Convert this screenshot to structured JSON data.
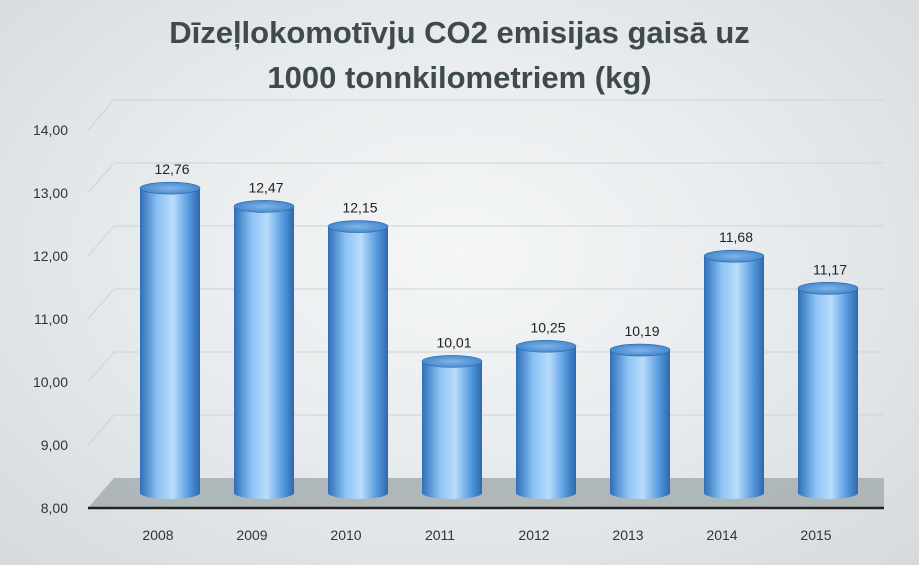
{
  "chart_data": {
    "type": "bar",
    "title_lines": [
      "Dīzeļlokomotīvju CO2 emisijas gaisā uz",
      "1000 tonnkilometriem (kg)"
    ],
    "categories": [
      "2008",
      "2009",
      "2010",
      "2011",
      "2012",
      "2013",
      "2014",
      "2015"
    ],
    "values": [
      12.76,
      12.47,
      12.15,
      10.01,
      10.25,
      10.19,
      11.68,
      11.17
    ],
    "value_labels": [
      "12,76",
      "12,47",
      "12,15",
      "10,01",
      "10,25",
      "10,19",
      "11,68",
      "11,17"
    ],
    "y_ticks": [
      "8,00",
      "9,00",
      "10,00",
      "11,00",
      "12,00",
      "13,00",
      "14,00"
    ],
    "ylim": [
      8,
      14
    ],
    "grid": true,
    "bar_color": "#5b9bd5"
  }
}
